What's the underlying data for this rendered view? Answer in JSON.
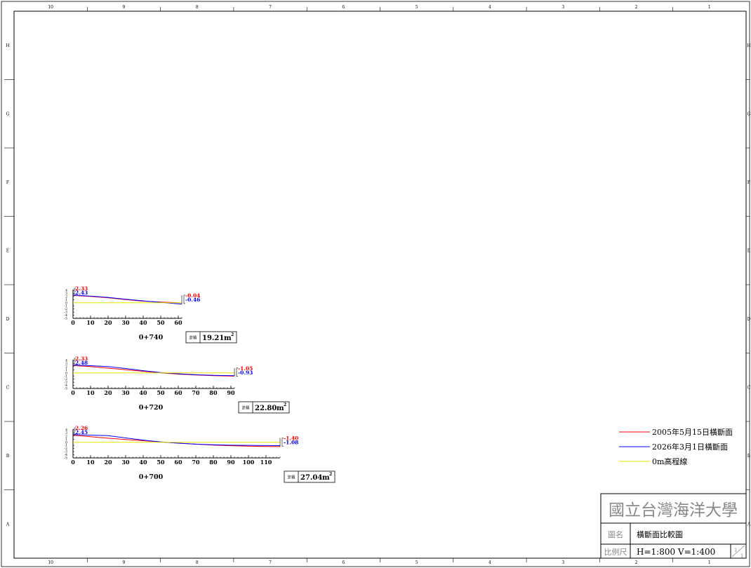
{
  "frame": {
    "top_columns": [
      "10",
      "9",
      "8",
      "7",
      "6",
      "5",
      "4",
      "3",
      "2",
      "1"
    ],
    "bottom_columns": [
      "10",
      "9",
      "8",
      "7",
      "6",
      "5",
      "4",
      "3",
      "2",
      "1"
    ],
    "left_rows": [
      "H",
      "G",
      "F",
      "E",
      "D",
      "C",
      "B",
      "A"
    ],
    "right_rows": [
      "H",
      "G",
      "F",
      "E",
      "D",
      "C",
      "B",
      "A"
    ]
  },
  "colors": {
    "survey_2005": "#ff0000",
    "survey_2026": "#0000ff",
    "zero_line": "#ffff00",
    "frame": "#000000"
  },
  "chart_data": [
    {
      "type": "line",
      "station": "0+740",
      "sediment": {
        "label": "淤積",
        "value": "19.21",
        "unit": "m",
        "superscript": "2"
      },
      "x_ticks": [
        "0",
        "10",
        "20",
        "30",
        "40",
        "50",
        "60"
      ],
      "y_ticks": [
        "4",
        "3",
        "2",
        "1",
        "0",
        "-1",
        "-2",
        "-3",
        "-4",
        "-5"
      ],
      "xlim": [
        0,
        62
      ],
      "ylim": [
        -5,
        4.2
      ],
      "start_labels": {
        "survey_2005": "2.33",
        "survey_2026": "2.43"
      },
      "end_labels": {
        "survey_2005": "-0.04",
        "survey_2026": "-0.46"
      },
      "series": [
        {
          "key": "survey_2005",
          "x": [
            0,
            10,
            20,
            30,
            40,
            50,
            62
          ],
          "y": [
            2.33,
            2.0,
            1.6,
            1.0,
            0.5,
            0.2,
            -0.04
          ]
        },
        {
          "key": "survey_2026",
          "x": [
            0,
            10,
            20,
            30,
            40,
            50,
            62
          ],
          "y": [
            2.43,
            2.1,
            1.7,
            1.1,
            0.6,
            0.1,
            -0.46
          ]
        },
        {
          "key": "zero_line",
          "x": [
            0,
            62
          ],
          "y": [
            0,
            0
          ]
        }
      ]
    },
    {
      "type": "line",
      "station": "0+720",
      "sediment": {
        "label": "淤積",
        "value": "22.80",
        "unit": "m",
        "superscript": "2"
      },
      "x_ticks": [
        "0",
        "10",
        "20",
        "30",
        "40",
        "50",
        "60",
        "70",
        "80",
        "90"
      ],
      "y_ticks": [
        "4",
        "3",
        "2",
        "1",
        "0",
        "-1",
        "-2",
        "-3",
        "-4",
        "-5"
      ],
      "xlim": [
        0,
        92
      ],
      "ylim": [
        -5,
        4.2
      ],
      "start_labels": {
        "survey_2005": "2.33",
        "survey_2026": "2.48"
      },
      "end_labels": {
        "survey_2005": "-1.05",
        "survey_2026": "-0.93"
      },
      "series": [
        {
          "key": "survey_2005",
          "x": [
            0,
            10,
            20,
            30,
            40,
            50,
            60,
            70,
            80,
            92
          ],
          "y": [
            2.33,
            2.0,
            1.5,
            1.0,
            0.5,
            0.0,
            -0.4,
            -0.7,
            -0.9,
            -1.05
          ]
        },
        {
          "key": "survey_2026",
          "x": [
            0,
            10,
            20,
            30,
            40,
            50,
            60,
            70,
            80,
            92
          ],
          "y": [
            2.48,
            2.3,
            2.0,
            1.4,
            0.7,
            0.1,
            -0.3,
            -0.6,
            -0.8,
            -0.93
          ]
        },
        {
          "key": "zero_line",
          "x": [
            0,
            92
          ],
          "y": [
            0,
            0
          ]
        }
      ]
    },
    {
      "type": "line",
      "station": "0+700",
      "sediment": {
        "label": "淤積",
        "value": "27.04",
        "unit": "m",
        "superscript": "2"
      },
      "x_ticks": [
        "0",
        "10",
        "20",
        "30",
        "40",
        "50",
        "60",
        "70",
        "80",
        "90",
        "100",
        "110"
      ],
      "y_ticks": [
        "4",
        "3",
        "2",
        "1",
        "0",
        "-1",
        "-2",
        "-3",
        "-4",
        "-5"
      ],
      "xlim": [
        0,
        118
      ],
      "ylim": [
        -5,
        4.2
      ],
      "start_labels": {
        "survey_2005": "2.26",
        "survey_2026": "2.45"
      },
      "end_labels": {
        "survey_2005": "-1.40",
        "survey_2026": "-1.08"
      },
      "series": [
        {
          "key": "survey_2005",
          "x": [
            0,
            10,
            20,
            30,
            40,
            50,
            60,
            70,
            80,
            90,
            100,
            110,
            118
          ],
          "y": [
            2.26,
            1.8,
            1.3,
            0.9,
            0.5,
            0.1,
            -0.3,
            -0.6,
            -0.9,
            -1.1,
            -1.25,
            -1.35,
            -1.4
          ]
        },
        {
          "key": "survey_2026",
          "x": [
            0,
            10,
            20,
            30,
            40,
            50,
            60,
            70,
            80,
            90,
            100,
            110,
            118
          ],
          "y": [
            2.45,
            2.3,
            2.1,
            1.4,
            0.7,
            0.1,
            -0.3,
            -0.6,
            -0.8,
            -0.95,
            -1.0,
            -1.05,
            -1.08
          ]
        },
        {
          "key": "zero_line",
          "x": [
            0,
            118
          ],
          "y": [
            0,
            0
          ]
        }
      ]
    }
  ],
  "legend": [
    {
      "key": "survey_2005",
      "label": "2005年5月15日橫斷面"
    },
    {
      "key": "survey_2026",
      "label": "2026年3月1日橫斷面"
    },
    {
      "key": "zero_line",
      "label": "0m高程線"
    }
  ],
  "title_block": {
    "institution": "國立台灣海洋大學",
    "drawing_name_label": "圖名",
    "drawing_name": "橫斷面比較圖",
    "scale_label": "比例尺",
    "scale": "H=1:800 V=1:400",
    "sheet_number": "1",
    "sheet_total": "1"
  }
}
